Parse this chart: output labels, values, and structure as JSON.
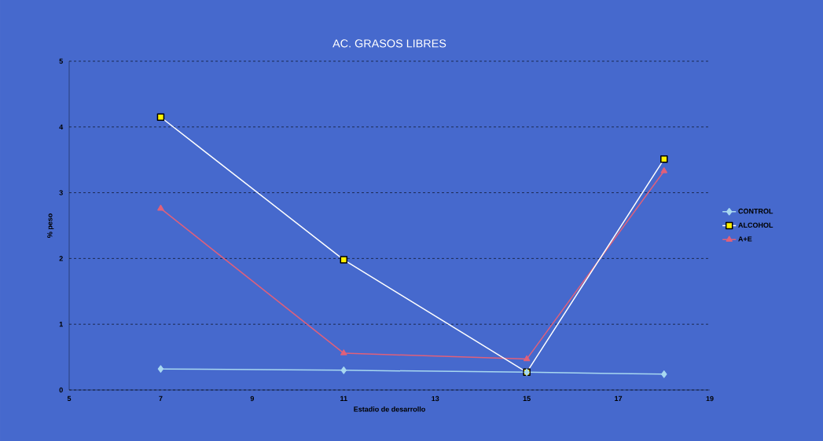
{
  "chart_data": {
    "type": "line",
    "title": "AC. GRASOS LIBRES",
    "xlabel": "Estadio de desarrollo",
    "ylabel": "% peso",
    "x": [
      7,
      11,
      15,
      18
    ],
    "series": [
      {
        "name": "CONTROL",
        "color": "#a8d8f0",
        "marker": "diamond",
        "values": [
          0.32,
          0.3,
          0.27,
          0.24
        ]
      },
      {
        "name": "ALCOHOL",
        "color": "#ffffff",
        "marker": "square",
        "values": [
          4.15,
          1.98,
          0.27,
          3.51
        ]
      },
      {
        "name": "A+E",
        "color": "#e0607a",
        "marker": "triangle",
        "values": [
          2.76,
          0.56,
          0.47,
          3.33
        ]
      }
    ],
    "xlim": [
      5,
      19
    ],
    "xticks": [
      5,
      7,
      9,
      11,
      13,
      15,
      17,
      19
    ],
    "ylim": [
      0,
      5
    ],
    "yticks": [
      0,
      1,
      2,
      3,
      4,
      5
    ],
    "grid": "y",
    "legend": "right"
  }
}
